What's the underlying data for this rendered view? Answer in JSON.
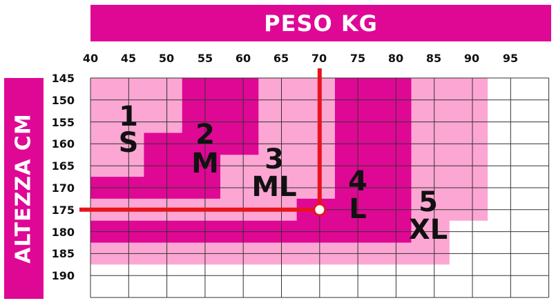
{
  "x_axis_title": "PESO KG",
  "y_axis_title": "ALTEZZA CM",
  "x_ticks": [
    "40",
    "45",
    "50",
    "55",
    "60",
    "65",
    "70",
    "75",
    "80",
    "85",
    "90",
    "95"
  ],
  "y_ticks": [
    "145",
    "150",
    "155",
    "160",
    "165",
    "170",
    "175",
    "180",
    "185",
    "190"
  ],
  "zones": [
    {
      "number": "1",
      "size": "S",
      "color": "#fca6d3"
    },
    {
      "number": "2",
      "size": "M",
      "color": "#df0895"
    },
    {
      "number": "3",
      "size": "ML",
      "color": "#fca6d3"
    },
    {
      "number": "4",
      "size": "L",
      "color": "#df0895"
    },
    {
      "number": "5",
      "size": "XL",
      "color": "#fca6d3"
    }
  ],
  "example_point": {
    "weight": 70,
    "height": 175,
    "color": "#e8141c"
  },
  "colors": {
    "header": "#df0895",
    "grid": "#333333"
  }
}
